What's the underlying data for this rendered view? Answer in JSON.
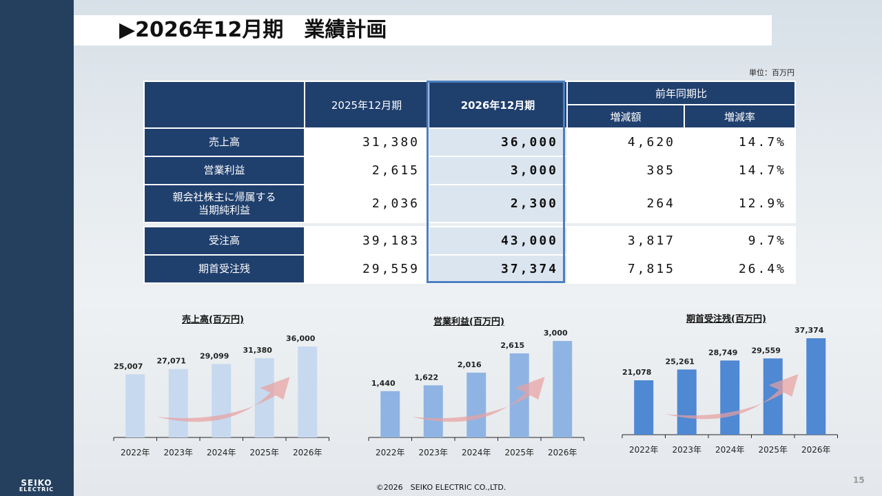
{
  "header": {
    "title": "▶2026年12月期　業績計画",
    "unit": "単位：百万円"
  },
  "table": {
    "headers": {
      "col_2025": "2025年12月期",
      "col_2026": "2026年12月期",
      "yoy": "前年同期比",
      "diff": "増減額",
      "rate": "増減率"
    },
    "rows": [
      {
        "label": "売上高",
        "v2025": "31,380",
        "v2026": "36,000",
        "diff": "4,620",
        "rate": "14.7%"
      },
      {
        "label": "営業利益",
        "v2025": "2,615",
        "v2026": "3,000",
        "diff": "385",
        "rate": "14.7%"
      },
      {
        "label_line1": "親会社株主に帰属する",
        "label_line2": "当期純利益",
        "v2025": "2,036",
        "v2026": "2,300",
        "diff": "264",
        "rate": "12.9%"
      },
      {
        "label": "受注高",
        "v2025": "39,183",
        "v2026": "43,000",
        "diff": "3,817",
        "rate": "9.7%"
      },
      {
        "label": "期首受注残",
        "v2025": "29,559",
        "v2026": "37,374",
        "diff": "7,815",
        "rate": "26.4%"
      }
    ]
  },
  "chart_data": [
    {
      "type": "bar",
      "title": "売上高(百万円)",
      "categories": [
        "2022年",
        "2023年",
        "2024年",
        "2025年",
        "2026年"
      ],
      "values": [
        25007,
        27071,
        29099,
        31380,
        36000
      ],
      "labels": [
        "25,007",
        "27,071",
        "29,099",
        "31,380",
        "36,000"
      ],
      "color": "#c7d9ef"
    },
    {
      "type": "bar",
      "title": "営業利益(百万円)",
      "categories": [
        "2022年",
        "2023年",
        "2024年",
        "2025年",
        "2026年"
      ],
      "values": [
        1440,
        1622,
        2016,
        2615,
        3000
      ],
      "labels": [
        "1,440",
        "1,622",
        "2,016",
        "2,615",
        "3,000"
      ],
      "color": "#8fb4e3"
    },
    {
      "type": "bar",
      "title": "期首受注残(百万円)",
      "categories": [
        "2022年",
        "2023年",
        "2024年",
        "2025年",
        "2026年"
      ],
      "values": [
        21078,
        25261,
        28749,
        29559,
        37374
      ],
      "labels": [
        "21,078",
        "25,261",
        "28,749",
        "29,559",
        "37,374"
      ],
      "color": "#4f88d3"
    }
  ],
  "footer": {
    "copyright": "©2026　SEIKO ELECTRIC CO.,LTD.",
    "page": "15"
  },
  "logo": {
    "line1": "SEIKO",
    "line2": "ELECTRIC"
  },
  "colors": {
    "sidebar": "#25405f",
    "table_header": "#1f3f6d",
    "highlight": "#dbe5ef",
    "highlight_border": "#4a7fc1",
    "arrow": "#e8a0a0"
  }
}
